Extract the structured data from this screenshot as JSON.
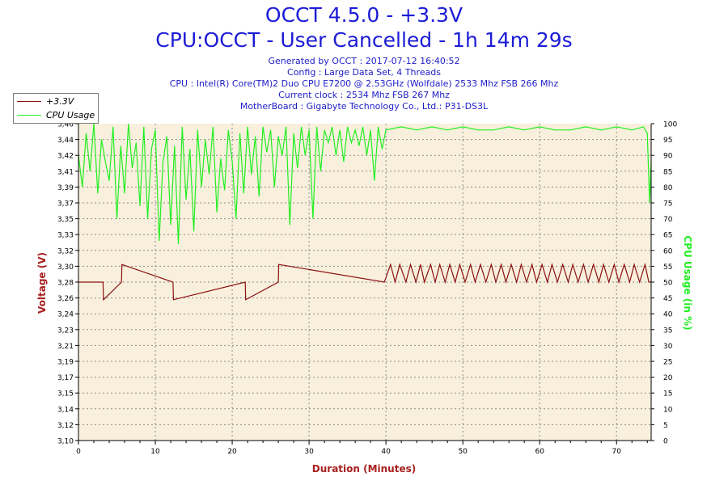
{
  "header": {
    "title": "OCCT 4.5.0 - +3.3V",
    "subtitle": "CPU:OCCT - User Cancelled - 1h 14m 29s",
    "info_lines": [
      "Generated by OCCT : 2017-07-12 16:40:52",
      "Config : Large Data Set, 4 Threads",
      "CPU : Intel(R) Core(TM)2 Duo CPU E7200 @ 2.53GHz (Wolfdale) 2533 Mhz FSB 266 Mhz",
      "Current clock : 2534 Mhz FSB 267 Mhz",
      "MotherBoard : Gigabyte Technology Co., Ltd.: P31-DS3L"
    ]
  },
  "colors": {
    "voltage": "#8b1010",
    "cpu": "#22ee22",
    "plot_bg": "#f8f0dc",
    "grid": "#8c8c8c",
    "axis_title_left": "#a82020",
    "axis_title_right": "#22ee22",
    "axis_title_bottom": "#a82020"
  },
  "chart_data": {
    "type": "line",
    "xlabel": "Duration (Minutes)",
    "ylabel": "Voltage (V)",
    "y2label": "CPU Usage (in %)",
    "xlim": [
      0,
      74.5
    ],
    "ylim": [
      3.1,
      3.46
    ],
    "y2lim": [
      0,
      100
    ],
    "x_ticks": [
      "0",
      "10",
      "20",
      "30",
      "40",
      "50",
      "60",
      "70"
    ],
    "y_ticks": [
      "3,10",
      "3,12",
      "3,14",
      "3,15",
      "3,17",
      "3,19",
      "3,21",
      "3,23",
      "3,24",
      "3,26",
      "3,28",
      "3,30",
      "3,32",
      "3,33",
      "3,35",
      "3,37",
      "3,39",
      "3,41",
      "3,42",
      "3,44",
      "3,46"
    ],
    "y2_ticks": [
      "0",
      "5",
      "10",
      "15",
      "20",
      "25",
      "30",
      "35",
      "40",
      "45",
      "50",
      "55",
      "60",
      "65",
      "70",
      "75",
      "80",
      "85",
      "90",
      "95",
      "100"
    ],
    "grid": true,
    "legend_position": "top-left",
    "series": [
      {
        "name": "+3.3V",
        "axis": "left",
        "baseline": 3.28,
        "x": [
          0,
          3.2,
          3.25,
          5.6,
          5.65,
          12.3,
          12.35,
          21.7,
          21.75,
          26.0,
          26.05,
          39.8,
          40.6,
          41.2,
          41.8,
          42.6,
          43.2,
          43.9,
          44.5,
          45.0,
          45.8,
          46.4,
          47.0,
          47.7,
          48.3,
          49.0,
          49.6,
          50.3,
          51.0,
          51.6,
          52.3,
          53.0,
          53.7,
          54.3,
          55.0,
          55.6,
          56.3,
          57.0,
          57.6,
          58.3,
          59.0,
          59.6,
          60.3,
          61.0,
          61.6,
          62.3,
          63.0,
          63.7,
          64.3,
          65.0,
          65.7,
          66.3,
          67.0,
          67.7,
          68.3,
          69.0,
          69.7,
          70.3,
          71.0,
          71.7,
          72.3,
          73.0,
          73.7,
          74.2
        ],
        "values": [
          3.28,
          3.28,
          3.26,
          3.28,
          3.3,
          3.28,
          3.26,
          3.28,
          3.26,
          3.28,
          3.3,
          3.28,
          3.3,
          3.28,
          3.3,
          3.28,
          3.3,
          3.28,
          3.3,
          3.28,
          3.3,
          3.28,
          3.3,
          3.28,
          3.3,
          3.28,
          3.3,
          3.28,
          3.3,
          3.28,
          3.3,
          3.28,
          3.3,
          3.28,
          3.3,
          3.28,
          3.3,
          3.28,
          3.3,
          3.28,
          3.3,
          3.28,
          3.3,
          3.28,
          3.3,
          3.28,
          3.3,
          3.28,
          3.3,
          3.28,
          3.3,
          3.28,
          3.3,
          3.28,
          3.3,
          3.28,
          3.3,
          3.28,
          3.3,
          3.28,
          3.3,
          3.28,
          3.3,
          3.28
        ]
      },
      {
        "name": "CPU Usage",
        "axis": "right",
        "x": [
          0,
          0.5,
          1,
          1.5,
          2,
          2.5,
          3,
          3.5,
          4,
          4.5,
          5,
          5.5,
          6,
          6.5,
          7,
          7.5,
          8,
          8.5,
          9,
          9.5,
          10,
          10.5,
          11,
          11.5,
          12,
          12.5,
          13,
          13.5,
          14,
          14.5,
          15,
          15.5,
          16,
          16.5,
          17,
          17.5,
          18,
          18.5,
          19,
          19.5,
          20,
          20.5,
          21,
          21.5,
          22,
          22.5,
          23,
          23.5,
          24,
          24.5,
          25,
          25.5,
          26,
          26.5,
          27,
          27.5,
          28,
          28.5,
          29,
          29.5,
          30,
          30.5,
          31,
          31.5,
          32,
          32.5,
          33,
          33.5,
          34,
          34.5,
          35,
          35.5,
          36,
          36.5,
          37,
          37.5,
          38,
          38.5,
          39,
          39.5,
          40,
          42,
          44,
          46,
          48,
          50,
          52,
          54,
          56,
          58,
          60,
          62,
          64,
          66,
          68,
          70,
          72,
          73.5,
          74,
          74.3,
          74.5
        ],
        "values": [
          90,
          80,
          97,
          85,
          100,
          78,
          95,
          88,
          82,
          99,
          70,
          93,
          78,
          100,
          86,
          94,
          74,
          99,
          70,
          92,
          98,
          63,
          88,
          96,
          68,
          93,
          62,
          99,
          76,
          92,
          66,
          98,
          80,
          95,
          84,
          99,
          72,
          89,
          79,
          98,
          88,
          70,
          97,
          78,
          99,
          84,
          96,
          77,
          99,
          91,
          98,
          80,
          96,
          90,
          99,
          68,
          97,
          86,
          99,
          90,
          98,
          70,
          99,
          85,
          98,
          94,
          99,
          90,
          98,
          88,
          99,
          94,
          98,
          93,
          99,
          90,
          98,
          82,
          99,
          92,
          98,
          99,
          98,
          99,
          98,
          99,
          98,
          98,
          99,
          98,
          99,
          98,
          98,
          99,
          98,
          99,
          98,
          99,
          97,
          75,
          88
        ]
      }
    ]
  }
}
